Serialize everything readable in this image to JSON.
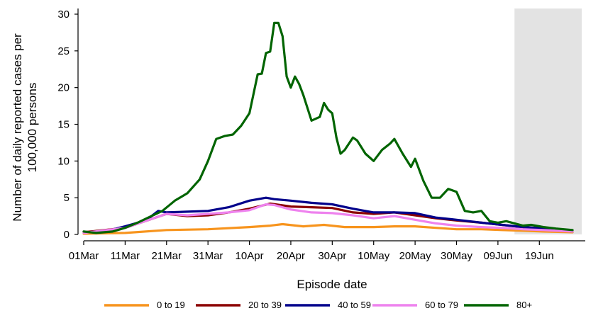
{
  "chart_data": {
    "type": "line",
    "xlabel": "Episode date",
    "ylabel_lines": [
      "Number of daily reported cases per",
      "100,000 persons"
    ],
    "ylim": [
      0,
      30
    ],
    "yticks": [
      0,
      5,
      10,
      15,
      20,
      25,
      30
    ],
    "x_start": "01Mar",
    "x_end": "27Jun",
    "xticks": [
      "01Mar",
      "11Mar",
      "21Mar",
      "31Mar",
      "10Apr",
      "20Apr",
      "30Apr",
      "10May",
      "20May",
      "30May",
      "09Jun",
      "19Jun"
    ],
    "shaded_region": {
      "from": "13Jun",
      "to": "30Jun",
      "color": "#e3e3e3"
    },
    "grid": false,
    "legend_position": "bottom",
    "series": [
      {
        "name": "0 to 19",
        "color": "#f7941d",
        "x": [
          "01Mar",
          "11Mar",
          "21Mar",
          "31Mar",
          "10Apr",
          "15Apr",
          "18Apr",
          "23Apr",
          "28Apr",
          "03May",
          "10May",
          "15May",
          "20May",
          "25May",
          "30May",
          "05Jun",
          "10Jun",
          "15Jun",
          "20Jun",
          "27Jun"
        ],
        "y": [
          0.1,
          0.2,
          0.6,
          0.7,
          1.0,
          1.2,
          1.4,
          1.1,
          1.3,
          1.0,
          1.0,
          1.1,
          1.1,
          0.9,
          0.7,
          0.7,
          0.6,
          0.5,
          0.4,
          0.3
        ]
      },
      {
        "name": "20 to 39",
        "color": "#8b0000",
        "x": [
          "01Mar",
          "11Mar",
          "21Mar",
          "26Mar",
          "31Mar",
          "05Apr",
          "10Apr",
          "15Apr",
          "20Apr",
          "25Apr",
          "30Apr",
          "05May",
          "10May",
          "15May",
          "20May",
          "25May",
          "30May",
          "05Jun",
          "10Jun",
          "15Jun",
          "20Jun",
          "27Jun"
        ],
        "y": [
          0.3,
          0.9,
          2.8,
          2.5,
          2.6,
          3.0,
          3.5,
          4.2,
          3.8,
          3.7,
          3.6,
          3.0,
          2.8,
          3.0,
          2.6,
          2.2,
          1.9,
          1.6,
          1.3,
          1.0,
          0.8,
          0.4
        ]
      },
      {
        "name": "40 to 59",
        "color": "#00008b",
        "x": [
          "01Mar",
          "06Mar",
          "11Mar",
          "16Mar",
          "19Mar",
          "21Mar",
          "26Mar",
          "31Mar",
          "05Apr",
          "10Apr",
          "14Apr",
          "16Apr",
          "20Apr",
          "25Apr",
          "30Apr",
          "05May",
          "10May",
          "15May",
          "20May",
          "25May",
          "30May",
          "05Jun",
          "10Jun",
          "15Jun",
          "20Jun",
          "27Jun"
        ],
        "y": [
          0.3,
          0.4,
          1.1,
          1.9,
          3.2,
          3.0,
          3.1,
          3.2,
          3.7,
          4.6,
          5.0,
          4.8,
          4.6,
          4.3,
          4.1,
          3.5,
          3.0,
          3.0,
          2.9,
          2.3,
          2.0,
          1.6,
          1.3,
          1.0,
          0.8,
          0.5
        ]
      },
      {
        "name": "60 to 79",
        "color": "#ee82ee",
        "x": [
          "01Mar",
          "11Mar",
          "21Mar",
          "26Mar",
          "31Mar",
          "05Apr",
          "10Apr",
          "14Apr",
          "16Apr",
          "20Apr",
          "25Apr",
          "30Apr",
          "05May",
          "10May",
          "15May",
          "20May",
          "25May",
          "30May",
          "05Jun",
          "10Jun",
          "15Jun",
          "20Jun",
          "27Jun"
        ],
        "y": [
          0.2,
          0.9,
          2.8,
          2.6,
          2.8,
          3.0,
          3.3,
          4.1,
          4.0,
          3.4,
          3.0,
          2.9,
          2.6,
          2.2,
          2.5,
          2.0,
          1.5,
          1.2,
          1.0,
          0.9,
          0.7,
          0.6,
          0.4
        ]
      },
      {
        "name": "80+",
        "color": "#006400",
        "x": [
          "01Mar",
          "04Mar",
          "08Mar",
          "11Mar",
          "14Mar",
          "17Mar",
          "20Mar",
          "23Mar",
          "26Mar",
          "29Mar",
          "31Mar",
          "02Apr",
          "04Apr",
          "06Apr",
          "08Apr",
          "10Apr",
          "12Apr",
          "13Apr",
          "14Apr",
          "15Apr",
          "16Apr",
          "17Apr",
          "18Apr",
          "19Apr",
          "20Apr",
          "21Apr",
          "22Apr",
          "23Apr",
          "25Apr",
          "27Apr",
          "28Apr",
          "29Apr",
          "30Apr",
          "01May",
          "02May",
          "03May",
          "05May",
          "06May",
          "08May",
          "10May",
          "12May",
          "14May",
          "15May",
          "17May",
          "19May",
          "20May",
          "22May",
          "24May",
          "26May",
          "28May",
          "30May",
          "01Jun",
          "03Jun",
          "05Jun",
          "07Jun",
          "09Jun",
          "11Jun",
          "13Jun",
          "15Jun",
          "17Jun",
          "20Jun",
          "23Jun",
          "27Jun"
        ],
        "y": [
          0.4,
          0.2,
          0.4,
          0.9,
          1.6,
          2.4,
          3.2,
          4.6,
          5.6,
          7.5,
          10.0,
          13.0,
          13.4,
          13.6,
          14.8,
          16.5,
          21.8,
          21.9,
          24.7,
          24.9,
          28.8,
          28.8,
          27.0,
          21.5,
          20.0,
          21.5,
          20.5,
          19.0,
          15.5,
          16.0,
          17.9,
          17.0,
          16.5,
          13.2,
          11.0,
          11.5,
          13.2,
          12.8,
          11.0,
          10.0,
          11.5,
          12.4,
          13.0,
          11.0,
          9.2,
          10.3,
          7.3,
          5.0,
          5.0,
          6.2,
          5.8,
          3.2,
          3.0,
          3.2,
          1.8,
          1.6,
          1.8,
          1.5,
          1.2,
          1.3,
          1.0,
          0.8,
          0.6
        ]
      }
    ]
  }
}
